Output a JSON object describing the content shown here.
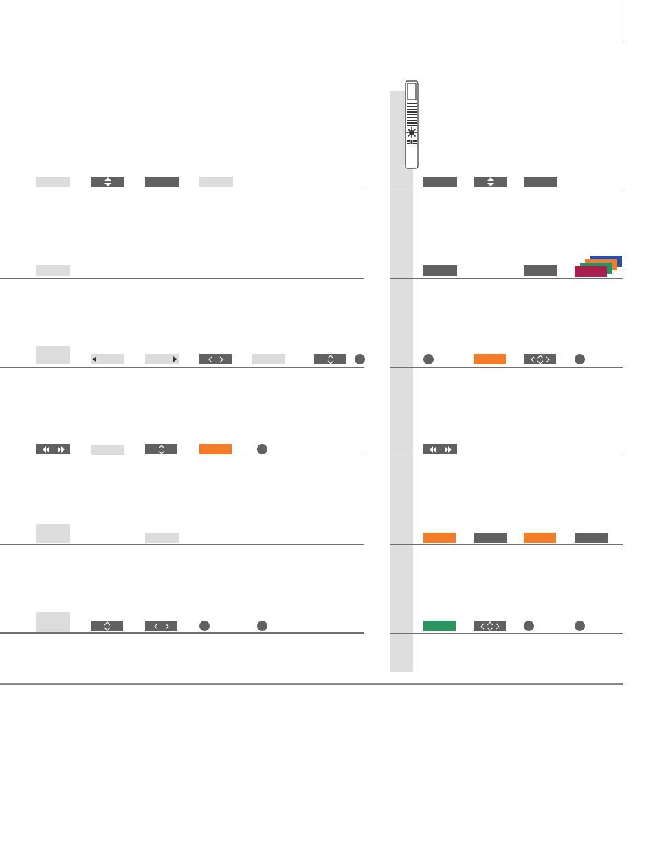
{
  "document": {
    "type": "remote-control-button-guide",
    "colors": {
      "light_button": "#dcdcdc",
      "dark_button": "#616161",
      "orange_button": "#f47b27",
      "green_button": "#2a9460",
      "sidebar_band": "#dedede",
      "stack_blue": "#2b4fa3",
      "stack_orange": "#f47b27",
      "stack_green": "#2a9460",
      "stack_red": "#a81e4f"
    },
    "icons": [
      "remote-control-icon",
      "up-down-filled-arrows-icon",
      "up-down-chevrons-icon",
      "left-right-chevrons-icon",
      "rewind-fast-forward-icon",
      "left-triangle-icon",
      "right-triangle-icon",
      "four-way-navigation-icon",
      "color-buttons-stack-icon"
    ]
  }
}
